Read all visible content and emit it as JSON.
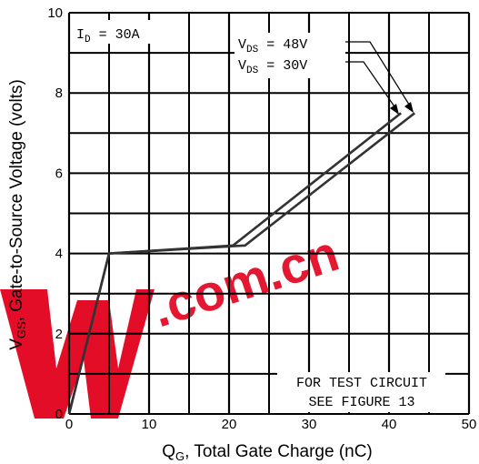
{
  "chart_data": {
    "type": "line",
    "xlabel_main": "Q",
    "xlabel_sub": "G",
    "xlabel_rest": ", Total Gate Charge (nC)",
    "ylabel_main": "V",
    "ylabel_sub": "GS",
    "ylabel_rest": ", Gate-to-Source Voltage (volts)",
    "xlim": [
      0,
      50
    ],
    "ylim": [
      0,
      10
    ],
    "xticks": [
      0,
      10,
      20,
      30,
      40,
      50
    ],
    "yticks": [
      0,
      2,
      4,
      6,
      8,
      10
    ],
    "grid_x_step": 5,
    "grid_y_step": 1,
    "series": [
      {
        "name": "VDS = 48V",
        "points": [
          [
            0,
            0
          ],
          [
            5,
            4
          ],
          [
            22,
            4.2
          ],
          [
            43.2,
            7.5
          ]
        ]
      },
      {
        "name": "VDS = 30V",
        "points": [
          [
            0,
            0
          ],
          [
            5,
            4
          ],
          [
            20.5,
            4.2
          ],
          [
            41.5,
            7.5
          ]
        ]
      }
    ],
    "annotations": {
      "id_label": {
        "main": "I",
        "sub": "D",
        "rest": " = 30A"
      },
      "vds_48": {
        "main": "V",
        "sub": "DS",
        "rest": " =  48V"
      },
      "vds_30": {
        "main": "V",
        "sub": "DS",
        "rest": " =  30V"
      },
      "note_line1": "FOR TEST CIRCUIT",
      "note_line2": "SEE FIGURE 13"
    },
    "grid": true,
    "colors": {
      "grid": "#000000",
      "curve": "#333333",
      "watermark": "#e3001b"
    }
  },
  "watermark": {
    "text": ".com.cn"
  }
}
